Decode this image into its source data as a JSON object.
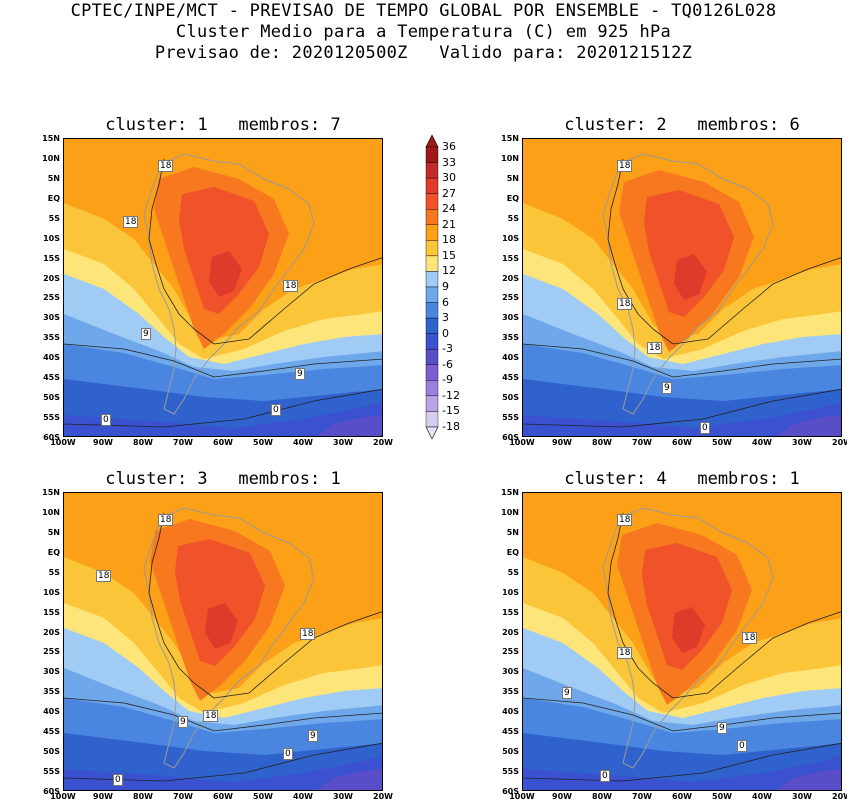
{
  "header": {
    "line1": "CPTEC/INPE/MCT - PREVISAO DE TEMPO GLOBAL POR ENSEMBLE - TQ0126L028",
    "line2": "Cluster Medio para a Temperatura (C) em 925 hPa",
    "line3": "Previsao de: 2020120500Z   Valido para: 2020121512Z"
  },
  "panels": [
    {
      "title": "cluster: 1   membros: 7",
      "contour_labels": [
        "18",
        "18",
        "18",
        "9",
        "9",
        "0",
        "0"
      ]
    },
    {
      "title": "cluster: 2   membros: 6",
      "contour_labels": [
        "18",
        "18",
        "18",
        "9",
        "0"
      ]
    },
    {
      "title": "cluster: 3   membros: 1",
      "contour_labels": [
        "18",
        "18",
        "18",
        "18",
        "9",
        "9",
        "0",
        "0"
      ]
    },
    {
      "title": "cluster: 4   membros: 1",
      "contour_labels": [
        "18",
        "18",
        "18",
        "9",
        "9",
        "0",
        "0"
      ]
    }
  ],
  "axes": {
    "lat_labels": [
      "15N",
      "10N",
      "5N",
      "EQ",
      "5S",
      "10S",
      "15S",
      "20S",
      "25S",
      "30S",
      "35S",
      "40S",
      "45S",
      "50S",
      "55S",
      "60S"
    ],
    "lon_labels": [
      "100W",
      "90W",
      "80W",
      "70W",
      "60W",
      "50W",
      "40W",
      "30W",
      "20W"
    ]
  },
  "colorbar": {
    "levels": [
      "36",
      "33",
      "30",
      "27",
      "24",
      "21",
      "18",
      "15",
      "12",
      "9",
      "6",
      "3",
      "0",
      "-3",
      "-6",
      "-9",
      "-12",
      "-15",
      "-18"
    ],
    "colors": [
      "#a01818",
      "#c02a2a",
      "#e03a2a",
      "#f0522a",
      "#f7781e",
      "#fca018",
      "#fbc53a",
      "#fee57a",
      "#9fcbf4",
      "#6fa8ea",
      "#4a86df",
      "#2f62cc",
      "#3a52d0",
      "#5a4ec8",
      "#7b5ed2",
      "#9a80dc",
      "#b8a4e6",
      "#d6ccf0"
    ]
  }
}
